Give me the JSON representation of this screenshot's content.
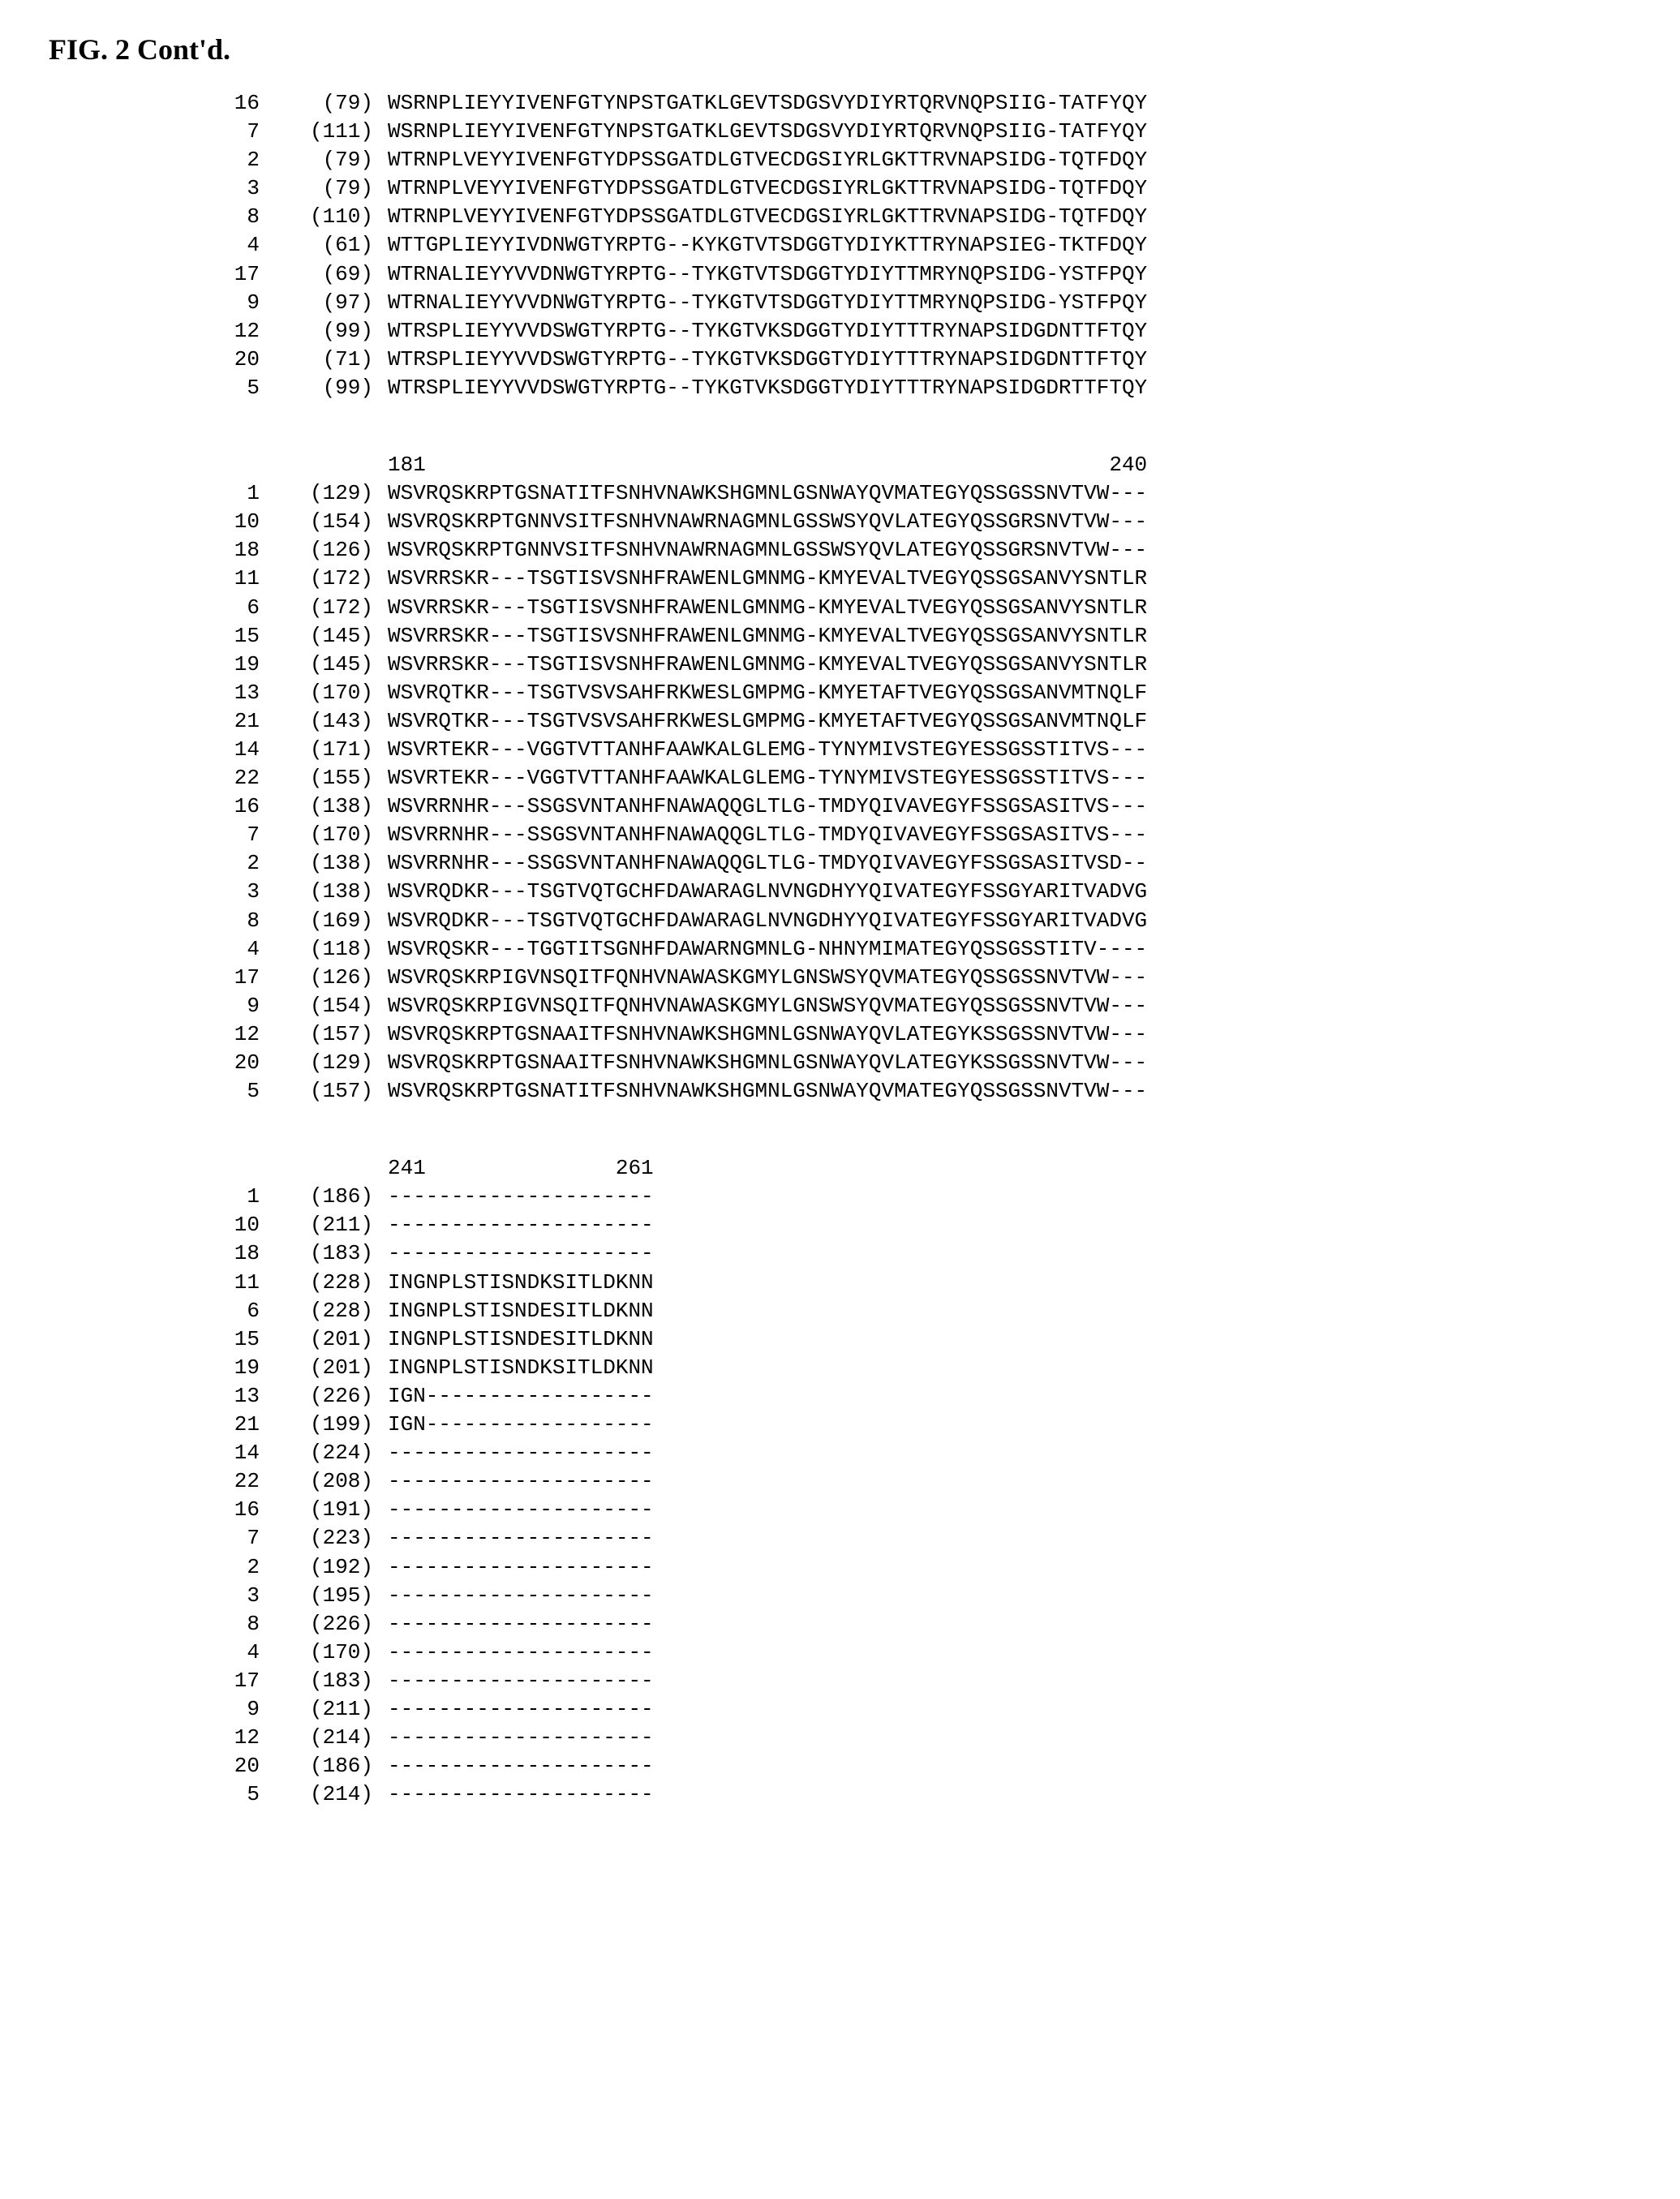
{
  "title": "FIG. 2 Cont'd.",
  "blocks": [
    {
      "ruler": {
        "start": "",
        "end": ""
      },
      "rows": [
        {
          "id": "16",
          "pos": "(79)",
          "seq": "WSRNPLIEYYIVENFGTYNPSTGATKLGEVTSDGSVYDIYRTQRVNQPSIIG-TATFYQY"
        },
        {
          "id": "7",
          "pos": "(111)",
          "seq": "WSRNPLIEYYIVENFGTYNPSTGATKLGEVTSDGSVYDIYRTQRVNQPSIIG-TATFYQY"
        },
        {
          "id": "2",
          "pos": "(79)",
          "seq": "WTRNPLVEYYIVENFGTYDPSSGATDLGTVECDGSIYRLGKTTRVNAPSIDG-TQTFDQY"
        },
        {
          "id": "3",
          "pos": "(79)",
          "seq": "WTRNPLVEYYIVENFGTYDPSSGATDLGTVECDGSIYRLGKTTRVNAPSIDG-TQTFDQY"
        },
        {
          "id": "8",
          "pos": "(110)",
          "seq": "WTRNPLVEYYIVENFGTYDPSSGATDLGTVECDGSIYRLGKTTRVNAPSIDG-TQTFDQY"
        },
        {
          "id": "4",
          "pos": "(61)",
          "seq": "WTTGPLIEYYIVDNWGTYRPTG--KYKGTVTSDGGTYDIYKTTRYNAPSIEG-TKTFDQY"
        },
        {
          "id": "17",
          "pos": "(69)",
          "seq": "WTRNALIEYYVVDNWGTYRPTG--TYKGTVTSDGGTYDIYTTMRYNQPSIDG-YSTFPQY"
        },
        {
          "id": "9",
          "pos": "(97)",
          "seq": "WTRNALIEYYVVDNWGTYRPTG--TYKGTVTSDGGTYDIYTTMRYNQPSIDG-YSTFPQY"
        },
        {
          "id": "12",
          "pos": "(99)",
          "seq": "WTRSPLIEYYVVDSWGTYRPTG--TYKGTVKSDGGTYDIYTTTRYNAPSIDGDNTTFTQY"
        },
        {
          "id": "20",
          "pos": "(71)",
          "seq": "WTRSPLIEYYVVDSWGTYRPTG--TYKGTVKSDGGTYDIYTTTRYNAPSIDGDNTTFTQY"
        },
        {
          "id": "5",
          "pos": "(99)",
          "seq": "WTRSPLIEYYVVDSWGTYRPTG--TYKGTVKSDGGTYDIYTTTRYNAPSIDGDRTTFTQY"
        }
      ]
    },
    {
      "ruler": {
        "start": "181",
        "end": "240"
      },
      "rows": [
        {
          "id": "1",
          "pos": "(129)",
          "seq": "WSVRQSKRPTGSNATITFSNHVNAWKSHGMNLGSNWAYQVMATEGYQSSGSSNVTVW---"
        },
        {
          "id": "10",
          "pos": "(154)",
          "seq": "WSVRQSKRPTGNNVSITFSNHVNAWRNAGMNLGSSWSYQVLATEGYQSSGRSNVTVW---"
        },
        {
          "id": "18",
          "pos": "(126)",
          "seq": "WSVRQSKRPTGNNVSITFSNHVNAWRNAGMNLGSSWSYQVLATEGYQSSGRSNVTVW---"
        },
        {
          "id": "11",
          "pos": "(172)",
          "seq": "WSVRRSKR---TSGTISVSNHFRAWENLGMNMG-KMYEVALTVEGYQSSGSANVYSNTLR"
        },
        {
          "id": "6",
          "pos": "(172)",
          "seq": "WSVRRSKR---TSGTISVSNHFRAWENLGMNMG-KMYEVALTVEGYQSSGSANVYSNTLR"
        },
        {
          "id": "15",
          "pos": "(145)",
          "seq": "WSVRRSKR---TSGTISVSNHFRAWENLGMNMG-KMYEVALTVEGYQSSGSANVYSNTLR"
        },
        {
          "id": "19",
          "pos": "(145)",
          "seq": "WSVRRSKR---TSGTISVSNHFRAWENLGMNMG-KMYEVALTVEGYQSSGSANVYSNTLR"
        },
        {
          "id": "13",
          "pos": "(170)",
          "seq": "WSVRQTKR---TSGTVSVSAHFRKWESLGMPMG-KMYETAFTVEGYQSSGSANVMTNQLF"
        },
        {
          "id": "21",
          "pos": "(143)",
          "seq": "WSVRQTKR---TSGTVSVSAHFRKWESLGMPMG-KMYETAFTVEGYQSSGSANVMTNQLF"
        },
        {
          "id": "14",
          "pos": "(171)",
          "seq": "WSVRTEKR---VGGTVTTANHFAAWKALGLEMG-TYNYMIVSTEGYESSGSSTITVS---"
        },
        {
          "id": "22",
          "pos": "(155)",
          "seq": "WSVRTEKR---VGGTVTTANHFAAWKALGLEMG-TYNYMIVSTEGYESSGSSTITVS---"
        },
        {
          "id": "16",
          "pos": "(138)",
          "seq": "WSVRRNHR---SSGSVNTANHFNAWAQQGLTLG-TMDYQIVAVEGYFSSGSASITVS---"
        },
        {
          "id": "7",
          "pos": "(170)",
          "seq": "WSVRRNHR---SSGSVNTANHFNAWAQQGLTLG-TMDYQIVAVEGYFSSGSASITVS---"
        },
        {
          "id": "2",
          "pos": "(138)",
          "seq": "WSVRRNHR---SSGSVNTANHFNAWAQQGLTLG-TMDYQIVAVEGYFSSGSASITVSD--"
        },
        {
          "id": "3",
          "pos": "(138)",
          "seq": "WSVRQDKR---TSGTVQTGCHFDAWARAGLNVNGDHYYQIVATEGYFSSGYARITVADVG"
        },
        {
          "id": "8",
          "pos": "(169)",
          "seq": "WSVRQDKR---TSGTVQTGCHFDAWARAGLNVNGDHYYQIVATEGYFSSGYARITVADVG"
        },
        {
          "id": "4",
          "pos": "(118)",
          "seq": "WSVRQSKR---TGGTITSGNHFDAWARNGMNLG-NHNYMIMATEGYQSSGSSTITV----"
        },
        {
          "id": "17",
          "pos": "(126)",
          "seq": "WSVRQSKRPIGVNSQITFQNHVNAWASKGMYLGNSWSYQVMATEGYQSSGSSNVTVW---"
        },
        {
          "id": "9",
          "pos": "(154)",
          "seq": "WSVRQSKRPIGVNSQITFQNHVNAWASKGMYLGNSWSYQVMATEGYQSSGSSNVTVW---"
        },
        {
          "id": "12",
          "pos": "(157)",
          "seq": "WSVRQSKRPTGSNAAITFSNHVNAWKSHGMNLGSNWAYQVLATEGYKSSGSSNVTVW---"
        },
        {
          "id": "20",
          "pos": "(129)",
          "seq": "WSVRQSKRPTGSNAAITFSNHVNAWKSHGMNLGSNWAYQVLATEGYKSSGSSNVTVW---"
        },
        {
          "id": "5",
          "pos": "(157)",
          "seq": "WSVRQSKRPTGSNATITFSNHVNAWKSHGMNLGSNWAYQVMATEGYQSSGSSNVTVW---"
        }
      ]
    },
    {
      "ruler": {
        "start": "241",
        "end": "261"
      },
      "rows": [
        {
          "id": "1",
          "pos": "(186)",
          "seq": "---------------------"
        },
        {
          "id": "10",
          "pos": "(211)",
          "seq": "---------------------"
        },
        {
          "id": "18",
          "pos": "(183)",
          "seq": "---------------------"
        },
        {
          "id": "11",
          "pos": "(228)",
          "seq": "INGNPLSTISNDKSITLDKNN"
        },
        {
          "id": "6",
          "pos": "(228)",
          "seq": "INGNPLSTISNDESITLDKNN"
        },
        {
          "id": "15",
          "pos": "(201)",
          "seq": "INGNPLSTISNDESITLDKNN"
        },
        {
          "id": "19",
          "pos": "(201)",
          "seq": "INGNPLSTISNDKSITLDKNN"
        },
        {
          "id": "13",
          "pos": "(226)",
          "seq": "IGN------------------"
        },
        {
          "id": "21",
          "pos": "(199)",
          "seq": "IGN------------------"
        },
        {
          "id": "14",
          "pos": "(224)",
          "seq": "---------------------"
        },
        {
          "id": "22",
          "pos": "(208)",
          "seq": "---------------------"
        },
        {
          "id": "16",
          "pos": "(191)",
          "seq": "---------------------"
        },
        {
          "id": "7",
          "pos": "(223)",
          "seq": "---------------------"
        },
        {
          "id": "2",
          "pos": "(192)",
          "seq": "---------------------"
        },
        {
          "id": "3",
          "pos": "(195)",
          "seq": "---------------------"
        },
        {
          "id": "8",
          "pos": "(226)",
          "seq": "---------------------"
        },
        {
          "id": "4",
          "pos": "(170)",
          "seq": "---------------------"
        },
        {
          "id": "17",
          "pos": "(183)",
          "seq": "---------------------"
        },
        {
          "id": "9",
          "pos": "(211)",
          "seq": "---------------------"
        },
        {
          "id": "12",
          "pos": "(214)",
          "seq": "---------------------"
        },
        {
          "id": "20",
          "pos": "(186)",
          "seq": "---------------------"
        },
        {
          "id": "5",
          "pos": "(214)",
          "seq": "---------------------"
        }
      ]
    }
  ]
}
